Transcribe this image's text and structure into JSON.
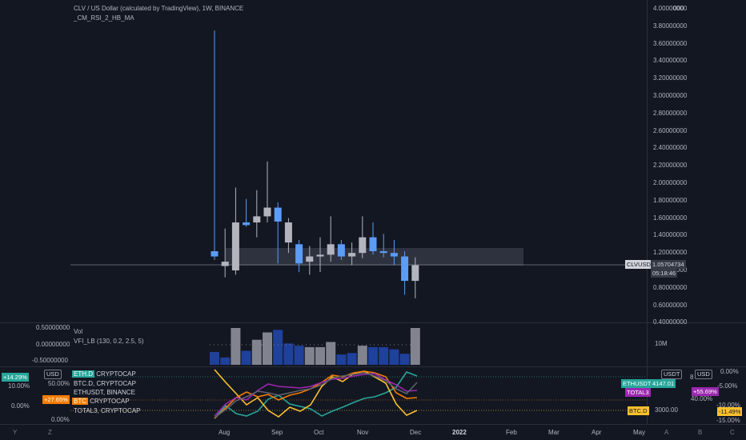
{
  "header": {
    "title": "CLV / US Dollar (calculated by TradingView), 1W, BINANCE",
    "indicator": "_CM_RSI_2_HB_MA"
  },
  "price_axis": {
    "ticks": [
      "4.00000000",
      "3.80000000",
      "3.60000000",
      "3.40000000",
      "3.20000000",
      "3.00000000",
      "2.80000000",
      "2.60000000",
      "2.40000000",
      "2.20000000",
      "2.00000000",
      "1.80000000",
      "1.60000000",
      "1.40000000",
      "1.20000000",
      "1.00000000",
      "0.80000000",
      "0.60000000",
      "0.40000000"
    ],
    "symbol_tag": "CLVUSD",
    "last_price": "1.05704734",
    "countdown": "05:18:46",
    "top_partial": "000"
  },
  "vol_pane": {
    "label": "Vol",
    "vfi_label": "VFI_LB (130, 0.2, 2.5, 5)",
    "left_ticks": [
      "0.50000000",
      "0.00000000",
      "-0.50000000"
    ],
    "right_tick": "10M"
  },
  "compare_pane": {
    "legend": [
      {
        "sym": "ETH.D",
        "text": "CRYPTOCAP"
      },
      {
        "sym": "",
        "text": "BTC.D, CRYPTOCAP"
      },
      {
        "sym": "",
        "text": "ETHUSDT, BINANCE"
      },
      {
        "sym": "BTC",
        "text": "CRYPTOCAP"
      },
      {
        "sym": "",
        "text": "TOTAL3, CRYPTOCAP"
      }
    ],
    "left_badges": [
      {
        "text": "+14.29%",
        "color": "#26a69a"
      },
      {
        "text": "+27.65%",
        "color": "#f57c00"
      }
    ],
    "left_scale": [
      "USD",
      "10.00%",
      "50.00%",
      "0.00%",
      "0.00%"
    ],
    "right_tags": [
      {
        "text": "ETHUSDT",
        "color": "#26a69a"
      },
      {
        "text": "4147.01",
        "color": "#26a69a"
      },
      {
        "text": "TOTAL3",
        "color": "#9c27b0"
      },
      {
        "text": "BTC.D",
        "color": "#fbc02d"
      },
      {
        "text": "3000.00",
        "color": ""
      },
      {
        "text": "USDT",
        "color": ""
      },
      {
        "text": "8",
        "color": ""
      }
    ],
    "right_scale": [
      "USD",
      "0.00%",
      "-5.00%",
      "40.00%",
      "-10.00%",
      "-15.00%"
    ],
    "right_badges": [
      {
        "text": "+55.69%",
        "color": "#9c27b0"
      },
      {
        "text": "-11.49%",
        "color": "#fbc02d"
      }
    ]
  },
  "time_axis": {
    "labels": [
      "Aug",
      "Sep",
      "Oct",
      "Nov",
      "Dec",
      "2022",
      "Feb",
      "Mar",
      "Apr",
      "May"
    ]
  },
  "corner_letters": [
    "Y",
    "Z",
    "A",
    "B",
    "C"
  ],
  "colors": {
    "bg": "#131722",
    "up": "#b2b5be",
    "down": "#5b9cf6",
    "grid": "#1e222d"
  },
  "candles": [
    {
      "o": 1.16,
      "h": 3.75,
      "l": 1.12,
      "c": 1.22,
      "dir": "down"
    },
    {
      "o": 1.05,
      "h": 1.48,
      "l": 0.92,
      "c": 1.1,
      "dir": "up"
    },
    {
      "o": 1.0,
      "h": 1.95,
      "l": 0.95,
      "c": 1.55,
      "dir": "up"
    },
    {
      "o": 1.55,
      "h": 1.82,
      "l": 1.5,
      "c": 1.52,
      "dir": "down"
    },
    {
      "o": 1.55,
      "h": 1.92,
      "l": 1.38,
      "c": 1.62,
      "dir": "up"
    },
    {
      "o": 1.62,
      "h": 2.25,
      "l": 1.55,
      "c": 1.72,
      "dir": "up"
    },
    {
      "o": 1.72,
      "h": 1.78,
      "l": 1.08,
      "c": 1.56,
      "dir": "down"
    },
    {
      "o": 1.55,
      "h": 1.6,
      "l": 1.2,
      "c": 1.32,
      "dir": "up"
    },
    {
      "o": 1.3,
      "h": 1.35,
      "l": 0.98,
      "c": 1.08,
      "dir": "down"
    },
    {
      "o": 1.1,
      "h": 1.28,
      "l": 0.95,
      "c": 1.16,
      "dir": "up"
    },
    {
      "o": 1.16,
      "h": 1.38,
      "l": 0.98,
      "c": 1.18,
      "dir": "up"
    },
    {
      "o": 1.18,
      "h": 1.62,
      "l": 1.1,
      "c": 1.3,
      "dir": "up"
    },
    {
      "o": 1.3,
      "h": 1.35,
      "l": 1.12,
      "c": 1.16,
      "dir": "down"
    },
    {
      "o": 1.16,
      "h": 1.32,
      "l": 1.06,
      "c": 1.2,
      "dir": "up"
    },
    {
      "o": 1.2,
      "h": 1.62,
      "l": 1.14,
      "c": 1.38,
      "dir": "up"
    },
    {
      "o": 1.38,
      "h": 1.55,
      "l": 1.18,
      "c": 1.22,
      "dir": "down"
    },
    {
      "o": 1.22,
      "h": 1.42,
      "l": 1.15,
      "c": 1.2,
      "dir": "down"
    },
    {
      "o": 1.2,
      "h": 1.35,
      "l": 1.06,
      "c": 1.16,
      "dir": "down"
    },
    {
      "o": 1.16,
      "h": 1.22,
      "l": 0.72,
      "c": 0.88,
      "dir": "down"
    },
    {
      "o": 0.88,
      "h": 1.15,
      "l": 0.68,
      "c": 1.06,
      "dir": "up"
    }
  ],
  "volumes": [
    0.35,
    0.2,
    1.0,
    0.38,
    0.68,
    0.88,
    0.95,
    0.58,
    0.52,
    0.48,
    0.48,
    0.62,
    0.28,
    0.32,
    0.52,
    0.48,
    0.48,
    0.42,
    0.3,
    1.0
  ],
  "volume_dirs": [
    "down",
    "down",
    "up",
    "down",
    "up",
    "up",
    "down",
    "down",
    "down",
    "up",
    "up",
    "up",
    "down",
    "down",
    "up",
    "down",
    "down",
    "down",
    "down",
    "up"
  ]
}
